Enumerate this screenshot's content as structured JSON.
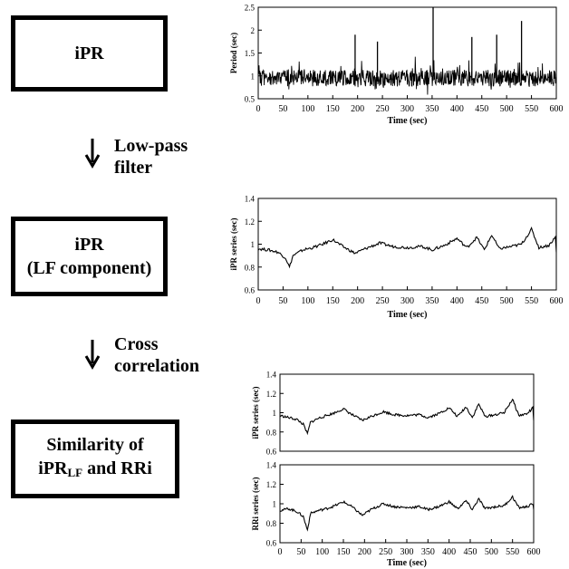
{
  "boxes": {
    "ipr": "iPR",
    "lf_line1": "iPR",
    "lf_line2": "(LF component)",
    "sim_line1": "Similarity  of",
    "sim_pre": "iPR",
    "sim_sub": "LF",
    "sim_post": " and RRi"
  },
  "steps": {
    "step1_line1": "Low-pass",
    "step1_line2": "filter",
    "step2_line1": "Cross",
    "step2_line2": "correlation"
  },
  "chart_data": [
    {
      "type": "line",
      "ylabel": "Period (sec)",
      "xlabel": "Time (sec)",
      "xlim": [
        0,
        600
      ],
      "ylim": [
        0.5,
        2.5
      ],
      "xticks": [
        "0",
        "50",
        "100",
        "150",
        "200",
        "250",
        "300",
        "350",
        "400",
        "450",
        "500",
        "550",
        "600"
      ],
      "yticks": [
        "0.5",
        "1",
        "1.5",
        "2",
        "2.5"
      ],
      "spikes": [
        [
          195,
          1.9
        ],
        [
          240,
          1.75
        ],
        [
          352,
          2.5
        ],
        [
          430,
          1.85
        ],
        [
          480,
          1.9
        ],
        [
          530,
          2.2
        ]
      ],
      "series": [
        {
          "x_step": 2,
          "baseline": 0.95,
          "noise": 0.18
        }
      ]
    },
    {
      "type": "line",
      "ylabel": "iPR series (sec)",
      "xlabel": "Time (sec)",
      "xlim": [
        0,
        600
      ],
      "ylim": [
        0.6,
        1.4
      ],
      "xticks": [
        "0",
        "50",
        "100",
        "150",
        "200",
        "250",
        "300",
        "350",
        "400",
        "450",
        "500",
        "550",
        "600"
      ],
      "yticks": [
        "0.6",
        "0.8",
        "1",
        "1.2",
        "1.4"
      ],
      "series": [
        {
          "points": [
            [
              0,
              0.96
            ],
            [
              20,
              0.95
            ],
            [
              40,
              0.93
            ],
            [
              55,
              0.88
            ],
            [
              63,
              0.8
            ],
            [
              70,
              0.9
            ],
            [
              90,
              0.95
            ],
            [
              110,
              0.97
            ],
            [
              130,
              1.0
            ],
            [
              150,
              1.04
            ],
            [
              170,
              0.98
            ],
            [
              195,
              0.92
            ],
            [
              215,
              0.96
            ],
            [
              245,
              1.01
            ],
            [
              270,
              0.98
            ],
            [
              300,
              0.97
            ],
            [
              330,
              0.98
            ],
            [
              350,
              0.95
            ],
            [
              375,
              0.99
            ],
            [
              400,
              1.05
            ],
            [
              420,
              0.97
            ],
            [
              440,
              1.06
            ],
            [
              455,
              0.95
            ],
            [
              470,
              1.08
            ],
            [
              485,
              0.96
            ],
            [
              510,
              0.98
            ],
            [
              530,
              1.0
            ],
            [
              550,
              1.13
            ],
            [
              565,
              0.97
            ],
            [
              585,
              0.99
            ],
            [
              598,
              1.06
            ],
            [
              600,
              0.93
            ]
          ]
        }
      ]
    },
    {
      "type": "line",
      "ylabel": "iPR series (sec)",
      "xlim": [
        0,
        600
      ],
      "ylim": [
        0.6,
        1.4
      ],
      "yticks": [
        "0.6",
        "0.8",
        "1",
        "1.2",
        "1.4"
      ],
      "series": [
        {
          "points": [
            [
              0,
              0.97
            ],
            [
              20,
              0.95
            ],
            [
              40,
              0.93
            ],
            [
              55,
              0.88
            ],
            [
              65,
              0.78
            ],
            [
              72,
              0.9
            ],
            [
              90,
              0.94
            ],
            [
              110,
              0.97
            ],
            [
              130,
              1.0
            ],
            [
              150,
              1.04
            ],
            [
              170,
              0.98
            ],
            [
              195,
              0.92
            ],
            [
              215,
              0.96
            ],
            [
              245,
              1.01
            ],
            [
              270,
              0.98
            ],
            [
              300,
              0.97
            ],
            [
              330,
              0.98
            ],
            [
              350,
              0.95
            ],
            [
              375,
              0.99
            ],
            [
              400,
              1.05
            ],
            [
              420,
              0.96
            ],
            [
              440,
              1.06
            ],
            [
              455,
              0.95
            ],
            [
              470,
              1.09
            ],
            [
              485,
              0.96
            ],
            [
              510,
              0.98
            ],
            [
              530,
              1.0
            ],
            [
              550,
              1.14
            ],
            [
              565,
              0.97
            ],
            [
              585,
              0.99
            ],
            [
              598,
              1.05
            ],
            [
              600,
              0.92
            ]
          ]
        }
      ]
    },
    {
      "type": "line",
      "ylabel": "RRi series (sec)",
      "xlabel": "Time (sec)",
      "xlim": [
        0,
        600
      ],
      "ylim": [
        0.6,
        1.4
      ],
      "xticks": [
        "0",
        "50",
        "100",
        "150",
        "200",
        "250",
        "300",
        "350",
        "400",
        "450",
        "500",
        "550",
        "600"
      ],
      "yticks": [
        "0.6",
        "0.8",
        "1",
        "1.2",
        "1.4"
      ],
      "series": [
        {
          "points": [
            [
              0,
              0.93
            ],
            [
              20,
              0.95
            ],
            [
              40,
              0.92
            ],
            [
              55,
              0.87
            ],
            [
              65,
              0.73
            ],
            [
              72,
              0.9
            ],
            [
              90,
              0.93
            ],
            [
              110,
              0.95
            ],
            [
              130,
              0.98
            ],
            [
              150,
              1.02
            ],
            [
              170,
              0.97
            ],
            [
              195,
              0.88
            ],
            [
              215,
              0.94
            ],
            [
              245,
              1.0
            ],
            [
              270,
              0.97
            ],
            [
              300,
              0.96
            ],
            [
              330,
              0.97
            ],
            [
              350,
              0.94
            ],
            [
              375,
              0.97
            ],
            [
              400,
              1.02
            ],
            [
              420,
              0.95
            ],
            [
              440,
              1.03
            ],
            [
              455,
              0.94
            ],
            [
              470,
              1.05
            ],
            [
              485,
              0.95
            ],
            [
              510,
              0.97
            ],
            [
              530,
              0.98
            ],
            [
              550,
              1.07
            ],
            [
              565,
              0.96
            ],
            [
              585,
              0.97
            ],
            [
              598,
              1.0
            ],
            [
              600,
              0.94
            ]
          ]
        }
      ]
    }
  ]
}
